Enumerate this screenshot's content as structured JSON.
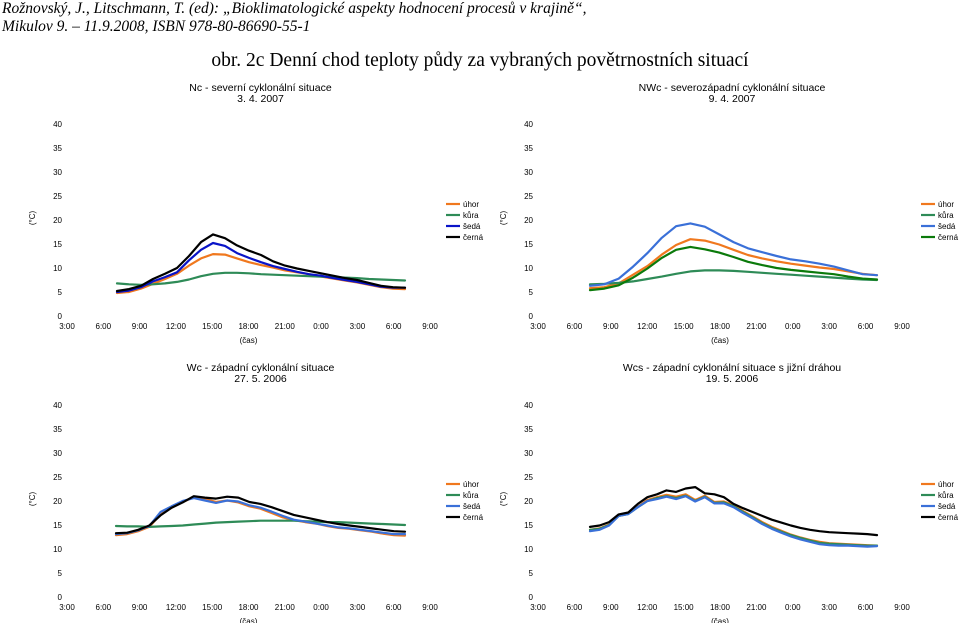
{
  "citation": {
    "line1": "Rožnovský, J., Litschmann, T. (ed): „Bioklimatologické aspekty hodnocení procesů v krajině“,",
    "line2": "Mikulov 9. – 11.9.2008, ISBN 978-80-86690-55-1"
  },
  "figure_title": "obr. 2c Denní chod teploty půdy za vybraných povětrnostních situací",
  "colors": {
    "úhor": "#F0781E",
    "kůra": "#2E8B57",
    "šedá": "#3A70D8",
    "černá": "#000000",
    "šedá_nc": "#0A14C8",
    "černá_nws": "#0B7A0B"
  },
  "chart_data": [
    {
      "type": "line",
      "title": "Nc - severní cyklonální situace",
      "subtitle": "3. 4. 2007",
      "xlabel": "(čas)",
      "ylabel": "(°C)",
      "ylim": [
        0,
        40
      ],
      "yticks": [
        "0",
        "5",
        "10",
        "15",
        "20",
        "25",
        "30",
        "35",
        "40"
      ],
      "xticks": [
        "3:00",
        "6:00",
        "9:00",
        "12:00",
        "15:00",
        "18:00",
        "21:00",
        "0:00",
        "3:00",
        "6:00",
        "9:00"
      ],
      "legend": "right",
      "series": [
        {
          "name": "úhor",
          "color": "#F0781E",
          "values": [
            4.8,
            5.0,
            5.7,
            6.7,
            7.7,
            8.8,
            10.5,
            12.0,
            12.9,
            12.8,
            12.0,
            11.2,
            10.6,
            10.1,
            9.5,
            9.1,
            8.7,
            8.2,
            7.8,
            7.4,
            7.0,
            6.5,
            6.0,
            5.7,
            5.6
          ]
        },
        {
          "name": "kůra",
          "color": "#2E8B57",
          "values": [
            6.8,
            6.6,
            6.5,
            6.6,
            6.8,
            7.1,
            7.6,
            8.3,
            8.8,
            9.0,
            9.0,
            8.9,
            8.7,
            8.6,
            8.5,
            8.4,
            8.3,
            8.2,
            8.1,
            8.0,
            7.9,
            7.7,
            7.6,
            7.5,
            7.4
          ]
        },
        {
          "name": "šedá",
          "color": "#0A14C8",
          "values": [
            5.0,
            5.3,
            6.0,
            7.2,
            8.1,
            9.1,
            11.6,
            13.8,
            15.2,
            14.6,
            13.1,
            12.1,
            11.2,
            10.4,
            9.8,
            9.2,
            8.7,
            8.4,
            7.9,
            7.5,
            7.1,
            6.6,
            6.1,
            5.9,
            5.9
          ]
        },
        {
          "name": "černá",
          "color": "#000000",
          "values": [
            5.2,
            5.6,
            6.3,
            7.7,
            8.8,
            10.0,
            12.5,
            15.4,
            17.0,
            16.2,
            14.7,
            13.6,
            12.7,
            11.4,
            10.5,
            9.9,
            9.4,
            8.9,
            8.4,
            7.9,
            7.5,
            6.9,
            6.3,
            6.0,
            5.9
          ]
        }
      ]
    },
    {
      "type": "line",
      "title": "NWc - severozápadní cyklonální situace",
      "subtitle": "9. 4. 2007",
      "xlabel": "(čas)",
      "ylabel": "(°C)",
      "ylim": [
        0,
        40
      ],
      "yticks": [
        "0",
        "5",
        "10",
        "15",
        "20",
        "25",
        "30",
        "35",
        "40"
      ],
      "xticks": [
        "3:00",
        "6:00",
        "9:00",
        "12:00",
        "15:00",
        "18:00",
        "21:00",
        "0:00",
        "3:00",
        "6:00",
        "9:00"
      ],
      "legend": "right",
      "series": [
        {
          "name": "úhor",
          "color": "#F0781E",
          "values": [
            5.8,
            6.0,
            6.8,
            8.6,
            10.4,
            12.8,
            14.8,
            16.0,
            15.7,
            14.9,
            13.8,
            12.7,
            12.0,
            11.4,
            10.9,
            10.5,
            10.1,
            9.8,
            9.3,
            8.8,
            8.5
          ]
        },
        {
          "name": "kůra",
          "color": "#2E8B57",
          "values": [
            6.6,
            6.7,
            6.9,
            7.2,
            7.7,
            8.2,
            8.8,
            9.3,
            9.5,
            9.5,
            9.4,
            9.2,
            9.0,
            8.8,
            8.6,
            8.4,
            8.2,
            8.0,
            7.8,
            7.6,
            7.5
          ]
        },
        {
          "name": "šedá",
          "color": "#3A70D8",
          "values": [
            6.3,
            6.6,
            7.8,
            10.3,
            13.1,
            16.3,
            18.7,
            19.3,
            18.6,
            17.0,
            15.4,
            14.1,
            13.3,
            12.5,
            11.8,
            11.4,
            10.9,
            10.3,
            9.5,
            8.7,
            8.5
          ]
        },
        {
          "name": "černá",
          "color": "#0B7A0B",
          "values": [
            5.4,
            5.7,
            6.4,
            8.0,
            9.9,
            12.1,
            13.8,
            14.4,
            13.9,
            13.2,
            12.3,
            11.3,
            10.6,
            10.0,
            9.6,
            9.3,
            9.0,
            8.7,
            8.2,
            7.8,
            7.6
          ]
        }
      ]
    },
    {
      "type": "line",
      "title": "Wc - západní cyklonální situace",
      "subtitle": "27. 5. 2006",
      "xlabel": "(čas)",
      "ylabel": "(°C)",
      "ylim": [
        0,
        40
      ],
      "yticks": [
        "0",
        "5",
        "10",
        "15",
        "20",
        "25",
        "30",
        "35",
        "40"
      ],
      "xticks": [
        "3:00",
        "6:00",
        "9:00",
        "12:00",
        "15:00",
        "18:00",
        "21:00",
        "0:00",
        "3:00",
        "6:00",
        "9:00"
      ],
      "legend": "right",
      "series": [
        {
          "name": "úhor",
          "color": "#F0781E",
          "values": [
            12.9,
            13.1,
            13.7,
            14.6,
            17.2,
            18.6,
            19.8,
            20.8,
            20.4,
            19.8,
            20.1,
            19.7,
            18.9,
            18.4,
            17.5,
            16.6,
            16.0,
            15.6,
            15.3,
            14.8,
            14.4,
            14.2,
            13.9,
            13.6,
            13.2,
            12.9,
            12.8
          ]
        },
        {
          "name": "kůra",
          "color": "#2E8B57",
          "values": [
            14.8,
            14.7,
            14.7,
            14.6,
            14.7,
            14.8,
            14.9,
            15.1,
            15.3,
            15.5,
            15.6,
            15.7,
            15.8,
            15.9,
            15.9,
            15.9,
            15.9,
            15.8,
            15.7,
            15.6,
            15.6,
            15.5,
            15.4,
            15.3,
            15.2,
            15.1,
            15.0
          ]
        },
        {
          "name": "šedá",
          "color": "#3A70D8",
          "values": [
            13.1,
            13.3,
            13.9,
            14.8,
            17.7,
            18.9,
            20.0,
            20.6,
            20.1,
            19.6,
            20.1,
            19.9,
            19.1,
            18.6,
            17.8,
            16.9,
            16.1,
            15.7,
            15.3,
            14.9,
            14.5,
            14.3,
            14.0,
            13.7,
            13.4,
            13.1,
            13.1
          ]
        },
        {
          "name": "černá",
          "color": "#000000",
          "values": [
            13.3,
            13.4,
            14.0,
            14.9,
            17.0,
            18.6,
            19.7,
            21.0,
            20.7,
            20.5,
            20.9,
            20.7,
            19.8,
            19.4,
            18.7,
            17.9,
            17.1,
            16.6,
            16.1,
            15.6,
            15.2,
            14.9,
            14.6,
            14.3,
            14.0,
            13.7,
            13.6
          ]
        }
      ]
    },
    {
      "type": "line",
      "title": "Wcs - západní cyklonální situace s jižní dráhou",
      "subtitle": "19. 5. 2006",
      "xlabel": "(čas)",
      "ylabel": "(°C)",
      "ylim": [
        0,
        40
      ],
      "yticks": [
        "0",
        "5",
        "10",
        "15",
        "20",
        "25",
        "30",
        "35",
        "40"
      ],
      "xticks": [
        "3:00",
        "6:00",
        "9:00",
        "12:00",
        "15:00",
        "18:00",
        "21:00",
        "0:00",
        "3:00",
        "6:00",
        "9:00"
      ],
      "legend": "right",
      "series": [
        {
          "name": "úhor",
          "color": "#F0781E",
          "values": [
            14.0,
            14.3,
            15.1,
            17.0,
            17.4,
            18.8,
            20.2,
            20.8,
            21.3,
            20.9,
            21.4,
            20.2,
            21.1,
            19.8,
            19.9,
            19.1,
            17.9,
            16.8,
            15.6,
            14.6,
            13.8,
            13.0,
            12.4,
            11.9,
            11.5,
            11.2,
            11.1,
            11.0,
            10.9,
            10.8,
            10.7
          ]
        },
        {
          "name": "kůra",
          "color": "#2E8B57",
          "values": [
            14.0,
            14.2,
            15.0,
            16.9,
            17.3,
            18.7,
            20.0,
            20.6,
            21.0,
            20.6,
            21.1,
            20.0,
            20.9,
            19.6,
            19.7,
            18.9,
            17.7,
            16.6,
            15.4,
            14.4,
            13.6,
            12.9,
            12.3,
            11.8,
            11.3,
            11.1,
            11.0,
            10.9,
            10.8,
            10.7,
            10.7
          ]
        },
        {
          "name": "šedá",
          "color": "#3A70D8",
          "values": [
            13.7,
            14.0,
            14.9,
            16.9,
            17.3,
            18.7,
            20.0,
            20.4,
            20.9,
            20.4,
            21.0,
            19.9,
            20.8,
            19.5,
            19.5,
            18.7,
            17.5,
            16.4,
            15.2,
            14.2,
            13.4,
            12.6,
            12.0,
            11.5,
            11.0,
            10.8,
            10.7,
            10.7,
            10.6,
            10.5,
            10.6
          ]
        },
        {
          "name": "černá",
          "color": "#000000",
          "values": [
            14.6,
            14.9,
            15.6,
            17.2,
            17.6,
            19.4,
            20.8,
            21.4,
            22.2,
            21.9,
            22.6,
            22.9,
            21.6,
            21.4,
            20.8,
            19.4,
            18.5,
            17.7,
            16.9,
            16.1,
            15.5,
            14.9,
            14.4,
            14.0,
            13.7,
            13.5,
            13.4,
            13.3,
            13.2,
            13.1,
            12.9
          ]
        }
      ]
    }
  ]
}
